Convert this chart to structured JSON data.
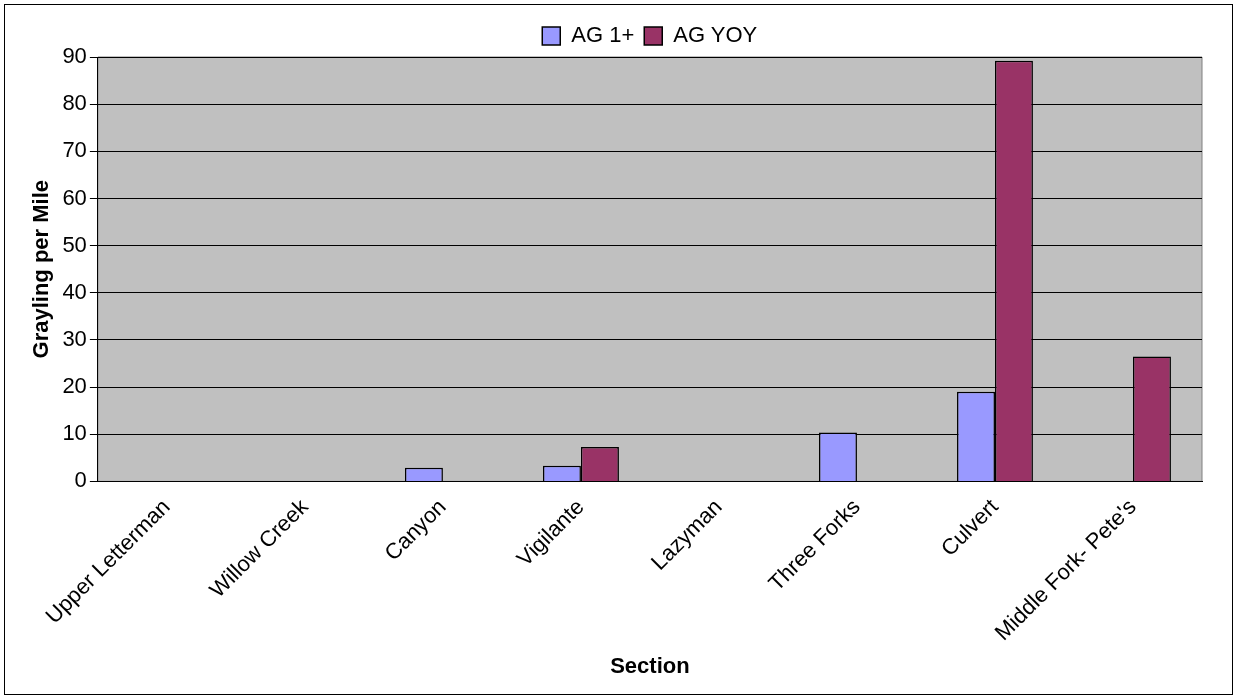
{
  "chart_data": {
    "type": "bar",
    "xlabel": "Section",
    "ylabel": "Grayling per Mile",
    "categories": [
      "Upper Letterman",
      "Willow Creek",
      "Canyon",
      "Vigilante",
      "Lazyman",
      "Three Forks",
      "Culvert",
      "Middle Fork- Pete's"
    ],
    "series": [
      {
        "name": "AG 1+",
        "color": "#9999ff",
        "values": [
          0,
          0,
          2.9,
          3.3,
          0,
          10.4,
          19,
          0
        ]
      },
      {
        "name": "AG YOY",
        "color": "#993366",
        "values": [
          0,
          0,
          0,
          7.3,
          0,
          0,
          89.2,
          26.5
        ]
      }
    ],
    "ylim": [
      0,
      90
    ],
    "yticks": [
      0,
      10,
      20,
      30,
      40,
      50,
      60,
      70,
      80,
      90
    ],
    "grid": "y",
    "legend": "top"
  }
}
